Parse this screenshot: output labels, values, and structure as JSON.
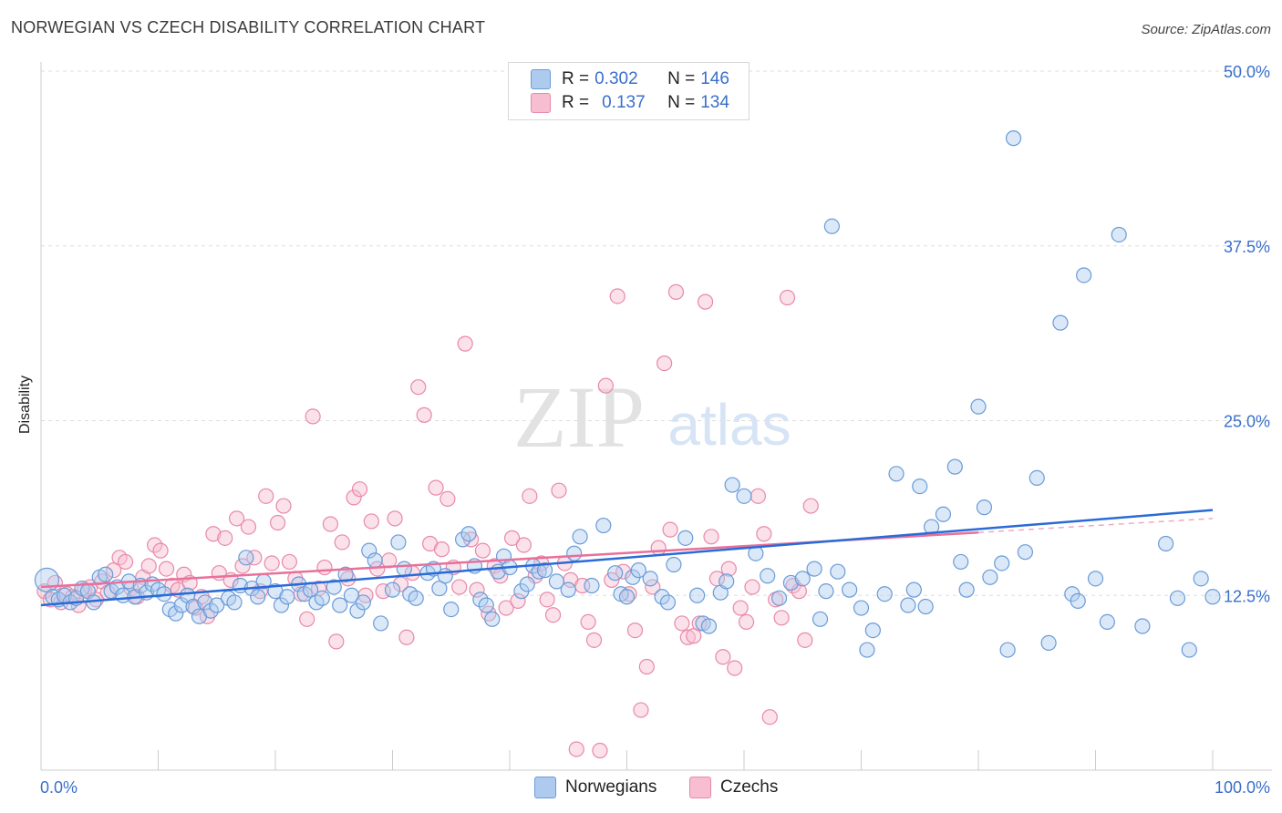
{
  "header": {
    "title": "NORWEGIAN VS CZECH DISABILITY CORRELATION CHART",
    "source": "Source: ZipAtlas.com"
  },
  "watermark": {
    "zip": "ZIP",
    "atlas": "atlas"
  },
  "legend": {
    "rows": [
      {
        "r_label": "R =",
        "r_value": "0.302",
        "n_label": "N =",
        "n_value": "146"
      },
      {
        "r_label": "R =",
        "r_value": "0.137",
        "n_label": "N =",
        "n_value": "134"
      }
    ]
  },
  "colors": {
    "blue_fill": "#aecbef",
    "blue_stroke": "#6a9bd8",
    "blue_line": "#2a6bd6",
    "pink_fill": "#f7bdd0",
    "pink_stroke": "#e889a8",
    "pink_line": "#e8709a",
    "axis_text": "#3a6fcc"
  },
  "chart_data": {
    "type": "scatter",
    "title": "NORWEGIAN VS CZECH DISABILITY CORRELATION CHART",
    "ylabel": "Disability",
    "xlabel": "",
    "xlim": [
      0,
      100
    ],
    "ylim": [
      0,
      50
    ],
    "x_tick_labels": [
      "0.0%",
      "100.0%"
    ],
    "y_ticks": [
      12.5,
      25.0,
      37.5,
      50.0
    ],
    "y_tick_labels": [
      "12.5%",
      "25.0%",
      "37.5%",
      "50.0%"
    ],
    "legend_names": [
      "Norwegians",
      "Czechs"
    ],
    "series": [
      {
        "name": "Norwegians",
        "R": 0.302,
        "N": 146,
        "trend": {
          "x": [
            0,
            100
          ],
          "y": [
            11.8,
            18.6
          ]
        },
        "points": [
          [
            0.5,
            13.6
          ],
          [
            1,
            12.4
          ],
          [
            1.5,
            12.2
          ],
          [
            2,
            12.5
          ],
          [
            2.5,
            12
          ],
          [
            3,
            12.3
          ],
          [
            3.5,
            13
          ],
          [
            4,
            12.8
          ],
          [
            4.5,
            12
          ],
          [
            5,
            13.8
          ],
          [
            5.5,
            14
          ],
          [
            6,
            12.8
          ],
          [
            6.5,
            13.1
          ],
          [
            7,
            12.5
          ],
          [
            7.5,
            13.5
          ],
          [
            8,
            12.4
          ],
          [
            8.5,
            13.2
          ],
          [
            9,
            12.7
          ],
          [
            9.5,
            13.3
          ],
          [
            10,
            12.9
          ],
          [
            10.5,
            12.6
          ],
          [
            11,
            11.5
          ],
          [
            11.5,
            11.2
          ],
          [
            12,
            11.8
          ],
          [
            12.5,
            12.5
          ],
          [
            13,
            11.7
          ],
          [
            13.5,
            11
          ],
          [
            14,
            12
          ],
          [
            14.5,
            11.4
          ],
          [
            15,
            11.8
          ],
          [
            16,
            12.3
          ],
          [
            16.5,
            12
          ],
          [
            17,
            13.2
          ],
          [
            17.5,
            15.2
          ],
          [
            18,
            13
          ],
          [
            18.5,
            12.4
          ],
          [
            19,
            13.5
          ],
          [
            20,
            12.8
          ],
          [
            20.5,
            11.8
          ],
          [
            21,
            12.4
          ],
          [
            22,
            13.3
          ],
          [
            22.5,
            12.6
          ],
          [
            23,
            12.9
          ],
          [
            23.5,
            12
          ],
          [
            24,
            12.3
          ],
          [
            25,
            13.1
          ],
          [
            25.5,
            11.8
          ],
          [
            26,
            14
          ],
          [
            26.5,
            12.5
          ],
          [
            27,
            11.4
          ],
          [
            27.5,
            12
          ],
          [
            28,
            15.7
          ],
          [
            28.5,
            15
          ],
          [
            29,
            10.5
          ],
          [
            30,
            12.9
          ],
          [
            30.5,
            16.3
          ],
          [
            31,
            14.4
          ],
          [
            31.5,
            12.6
          ],
          [
            32,
            12.3
          ],
          [
            33,
            14.1
          ],
          [
            33.5,
            14.4
          ],
          [
            34,
            13
          ],
          [
            34.5,
            13.9
          ],
          [
            35,
            11.5
          ],
          [
            36,
            16.5
          ],
          [
            36.5,
            16.9
          ],
          [
            37,
            14.6
          ],
          [
            37.5,
            12.2
          ],
          [
            38,
            11.8
          ],
          [
            38.5,
            10.8
          ],
          [
            39,
            14.2
          ],
          [
            39.5,
            15.3
          ],
          [
            40,
            14.5
          ],
          [
            41,
            12.8
          ],
          [
            41.5,
            13.3
          ],
          [
            42,
            14.6
          ],
          [
            42.5,
            14.2
          ],
          [
            43,
            14.3
          ],
          [
            44,
            13.5
          ],
          [
            45,
            12.9
          ],
          [
            45.5,
            15.5
          ],
          [
            46,
            16.7
          ],
          [
            47,
            13.2
          ],
          [
            48,
            17.5
          ],
          [
            49,
            14.1
          ],
          [
            49.5,
            12.6
          ],
          [
            50,
            12.4
          ],
          [
            50.5,
            13.8
          ],
          [
            51,
            14.3
          ],
          [
            52,
            13.7
          ],
          [
            53,
            12.4
          ],
          [
            53.5,
            12
          ],
          [
            54,
            14.7
          ],
          [
            55,
            16.6
          ],
          [
            56,
            12.5
          ],
          [
            56.5,
            10.5
          ],
          [
            57,
            10.3
          ],
          [
            58,
            12.7
          ],
          [
            58.5,
            13.5
          ],
          [
            59,
            20.4
          ],
          [
            60,
            19.6
          ],
          [
            61,
            15.5
          ],
          [
            62,
            13.9
          ],
          [
            63,
            12.3
          ],
          [
            64,
            13.4
          ],
          [
            65,
            13.7
          ],
          [
            66,
            14.4
          ],
          [
            66.5,
            10.8
          ],
          [
            67,
            12.8
          ],
          [
            67.5,
            38.9
          ],
          [
            68,
            14.2
          ],
          [
            69,
            12.9
          ],
          [
            70,
            11.6
          ],
          [
            70.5,
            8.6
          ],
          [
            71,
            10
          ],
          [
            72,
            12.6
          ],
          [
            73,
            21.2
          ],
          [
            74,
            11.8
          ],
          [
            74.5,
            12.9
          ],
          [
            75,
            20.3
          ],
          [
            75.5,
            11.7
          ],
          [
            76,
            17.4
          ],
          [
            77,
            18.3
          ],
          [
            78,
            21.7
          ],
          [
            78.5,
            14.9
          ],
          [
            79,
            12.9
          ],
          [
            80,
            26
          ],
          [
            80.5,
            18.8
          ],
          [
            81,
            13.8
          ],
          [
            82,
            14.8
          ],
          [
            82.5,
            8.6
          ],
          [
            83,
            45.2
          ],
          [
            84,
            15.6
          ],
          [
            85,
            20.9
          ],
          [
            86,
            9.1
          ],
          [
            87,
            32
          ],
          [
            88,
            12.6
          ],
          [
            88.5,
            12.1
          ],
          [
            89,
            35.4
          ],
          [
            90,
            13.7
          ],
          [
            91,
            10.6
          ],
          [
            92,
            38.3
          ],
          [
            94,
            10.3
          ],
          [
            96,
            16.2
          ],
          [
            97,
            12.3
          ],
          [
            98,
            8.6
          ],
          [
            99,
            13.7
          ],
          [
            100,
            12.4
          ]
        ]
      },
      {
        "name": "Czechs",
        "R": 0.137,
        "N": 134,
        "trend": {
          "x": [
            0,
            80
          ],
          "y": [
            13.1,
            17.0
          ]
        },
        "trend_dashed": {
          "x": [
            80,
            100
          ],
          "y": [
            17.0,
            18.0
          ]
        },
        "points": [
          [
            0.3,
            12.8
          ],
          [
            0.8,
            12.2
          ],
          [
            1.2,
            13.4
          ],
          [
            1.7,
            12
          ],
          [
            2.2,
            12.6
          ],
          [
            2.7,
            12.4
          ],
          [
            3.2,
            11.8
          ],
          [
            3.7,
            12.9
          ],
          [
            4.2,
            13.1
          ],
          [
            4.7,
            12.2
          ],
          [
            5.2,
            13.5
          ],
          [
            5.7,
            12.7
          ],
          [
            6.2,
            14.3
          ],
          [
            6.7,
            15.2
          ],
          [
            7.2,
            14.9
          ],
          [
            7.7,
            13
          ],
          [
            8.2,
            12.4
          ],
          [
            8.7,
            13.8
          ],
          [
            9.2,
            14.6
          ],
          [
            9.7,
            16.1
          ],
          [
            10.2,
            15.7
          ],
          [
            10.7,
            14.4
          ],
          [
            11.2,
            13.2
          ],
          [
            11.7,
            12.9
          ],
          [
            12.2,
            14
          ],
          [
            12.7,
            13.4
          ],
          [
            13.2,
            11.6
          ],
          [
            13.7,
            12.4
          ],
          [
            14.2,
            11
          ],
          [
            14.7,
            16.9
          ],
          [
            15.2,
            14.1
          ],
          [
            15.7,
            16.6
          ],
          [
            16.2,
            13.6
          ],
          [
            16.7,
            18
          ],
          [
            17.2,
            14.6
          ],
          [
            17.7,
            17.4
          ],
          [
            18.2,
            15.2
          ],
          [
            18.7,
            12.8
          ],
          [
            19.2,
            19.6
          ],
          [
            19.7,
            14.8
          ],
          [
            20.2,
            17.7
          ],
          [
            20.7,
            18.9
          ],
          [
            21.2,
            14.9
          ],
          [
            21.7,
            13.7
          ],
          [
            22.2,
            12.6
          ],
          [
            22.7,
            10.8
          ],
          [
            23.2,
            25.3
          ],
          [
            23.7,
            13
          ],
          [
            24.2,
            14.5
          ],
          [
            24.7,
            17.6
          ],
          [
            25.2,
            9.2
          ],
          [
            25.7,
            16.3
          ],
          [
            26.2,
            13.7
          ],
          [
            26.7,
            19.5
          ],
          [
            27.2,
            20.1
          ],
          [
            27.7,
            12.5
          ],
          [
            28.2,
            17.8
          ],
          [
            28.7,
            14.4
          ],
          [
            29.2,
            12.8
          ],
          [
            29.7,
            15
          ],
          [
            30.2,
            18
          ],
          [
            30.7,
            13.3
          ],
          [
            31.2,
            9.5
          ],
          [
            31.7,
            14.1
          ],
          [
            32.2,
            27.4
          ],
          [
            32.7,
            25.4
          ],
          [
            33.2,
            16.2
          ],
          [
            33.7,
            20.2
          ],
          [
            34.2,
            15.8
          ],
          [
            34.7,
            19.4
          ],
          [
            35.2,
            14.5
          ],
          [
            35.7,
            13.1
          ],
          [
            36.2,
            30.5
          ],
          [
            36.7,
            16.5
          ],
          [
            37.2,
            12.9
          ],
          [
            37.7,
            15.7
          ],
          [
            38.2,
            11.2
          ],
          [
            38.7,
            14.6
          ],
          [
            39.2,
            13.9
          ],
          [
            39.7,
            11.6
          ],
          [
            40.2,
            16.6
          ],
          [
            40.7,
            12.1
          ],
          [
            41.2,
            16.1
          ],
          [
            41.7,
            19.6
          ],
          [
            42.2,
            13.9
          ],
          [
            42.7,
            14.8
          ],
          [
            43.2,
            12.2
          ],
          [
            43.7,
            11.1
          ],
          [
            44.2,
            20
          ],
          [
            44.7,
            14.8
          ],
          [
            45.2,
            13.6
          ],
          [
            45.7,
            1.5
          ],
          [
            46.2,
            13.2
          ],
          [
            46.7,
            10.6
          ],
          [
            47.2,
            9.3
          ],
          [
            47.7,
            1.4
          ],
          [
            48.2,
            27.5
          ],
          [
            48.7,
            13.6
          ],
          [
            49.2,
            33.9
          ],
          [
            49.7,
            14.2
          ],
          [
            50.2,
            12.6
          ],
          [
            50.7,
            10
          ],
          [
            51.2,
            4.3
          ],
          [
            51.7,
            7.4
          ],
          [
            52.2,
            13.1
          ],
          [
            52.7,
            15.9
          ],
          [
            53.2,
            29.1
          ],
          [
            53.7,
            17.2
          ],
          [
            54.2,
            34.2
          ],
          [
            54.7,
            10.5
          ],
          [
            55.2,
            9.5
          ],
          [
            55.7,
            9.6
          ],
          [
            56.2,
            10.5
          ],
          [
            56.7,
            33.5
          ],
          [
            57.2,
            16.7
          ],
          [
            57.7,
            13.7
          ],
          [
            58.2,
            8.1
          ],
          [
            58.7,
            14.4
          ],
          [
            59.2,
            7.3
          ],
          [
            59.7,
            11.6
          ],
          [
            60.2,
            10.6
          ],
          [
            60.7,
            13.1
          ],
          [
            61.2,
            19.6
          ],
          [
            61.7,
            16.9
          ],
          [
            62.2,
            3.8
          ],
          [
            62.7,
            12.2
          ],
          [
            63.2,
            10.9
          ],
          [
            63.7,
            33.8
          ],
          [
            64.2,
            13.2
          ],
          [
            64.7,
            12.8
          ],
          [
            65.2,
            9.3
          ],
          [
            65.7,
            18.9
          ]
        ]
      }
    ]
  }
}
